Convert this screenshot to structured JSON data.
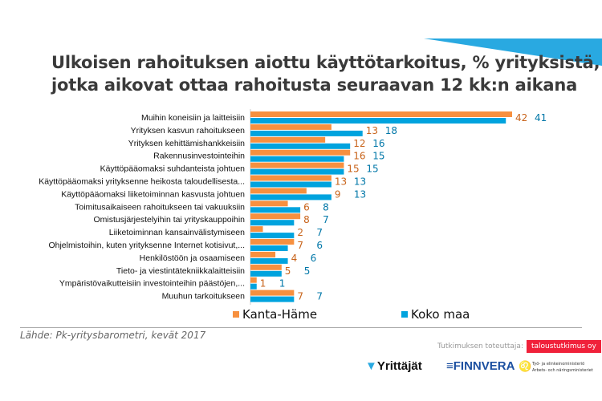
{
  "title": {
    "line1": "Ulkoisen rahoituksen aiottu käyttötarkoitus, % yrityksistä,",
    "line2": "jotka aikovat ottaa rahoitusta seuraavan 12 kk:n aikana"
  },
  "chart_data": {
    "type": "bar",
    "orientation": "horizontal",
    "categories": [
      "Muihin koneisiin ja laitteisiin",
      "Yrityksen kasvun rahoitukseen",
      "Yrityksen kehittämishankkeisiin",
      "Rakennusinvestointeihin",
      "Käyttöpääomaksi suhdanteista johtuen",
      "Käyttöpääomaksi yrityksenne heikosta taloudellisesta...",
      "Käyttöpääomaksi liiketoiminnan kasvusta johtuen",
      "Toimitusaikaiseen rahoitukseen tai vakuuksiin",
      "Omistusjärjestelyihin tai yrityskauppoihin",
      "Liiketoiminnan kansainvälistymiseen",
      "Ohjelmistoihin, kuten yrityksenne Internet kotisivut,...",
      "Henkilöstöön ja osaamiseen",
      "Tieto- ja viestintätekniikkalaitteisiin",
      "Ympäristövaikutteisiin investointeihin päästöjen,...",
      "Muuhun tarkoitukseen"
    ],
    "series": [
      {
        "name": "Kanta-Häme",
        "color": "#f7903f",
        "values": [
          42,
          13,
          12,
          16,
          15,
          13,
          9,
          6,
          8,
          2,
          7,
          4,
          5,
          1,
          7
        ]
      },
      {
        "name": "Koko maa",
        "color": "#00a3de",
        "values": [
          41,
          18,
          16,
          15,
          15,
          13,
          13,
          8,
          7,
          7,
          6,
          6,
          5,
          1,
          7
        ]
      }
    ],
    "xlim": [
      0,
      42
    ],
    "legend": "bottom"
  },
  "footer": {
    "source": "Lähde: Pk-yritysbarometri, kevät 2017",
    "implementer_label": "Tutkimuksen toteuttaja:",
    "implementer": "taloustutkimus oy",
    "logos": {
      "yrittajat": "Yrittäjät",
      "finnvera": "FINNVERA",
      "tem1": "Työ- ja elinkeinoministeriö",
      "tem2": "Arbets- och näringsministeriet"
    }
  },
  "accent": "#29a9e1"
}
